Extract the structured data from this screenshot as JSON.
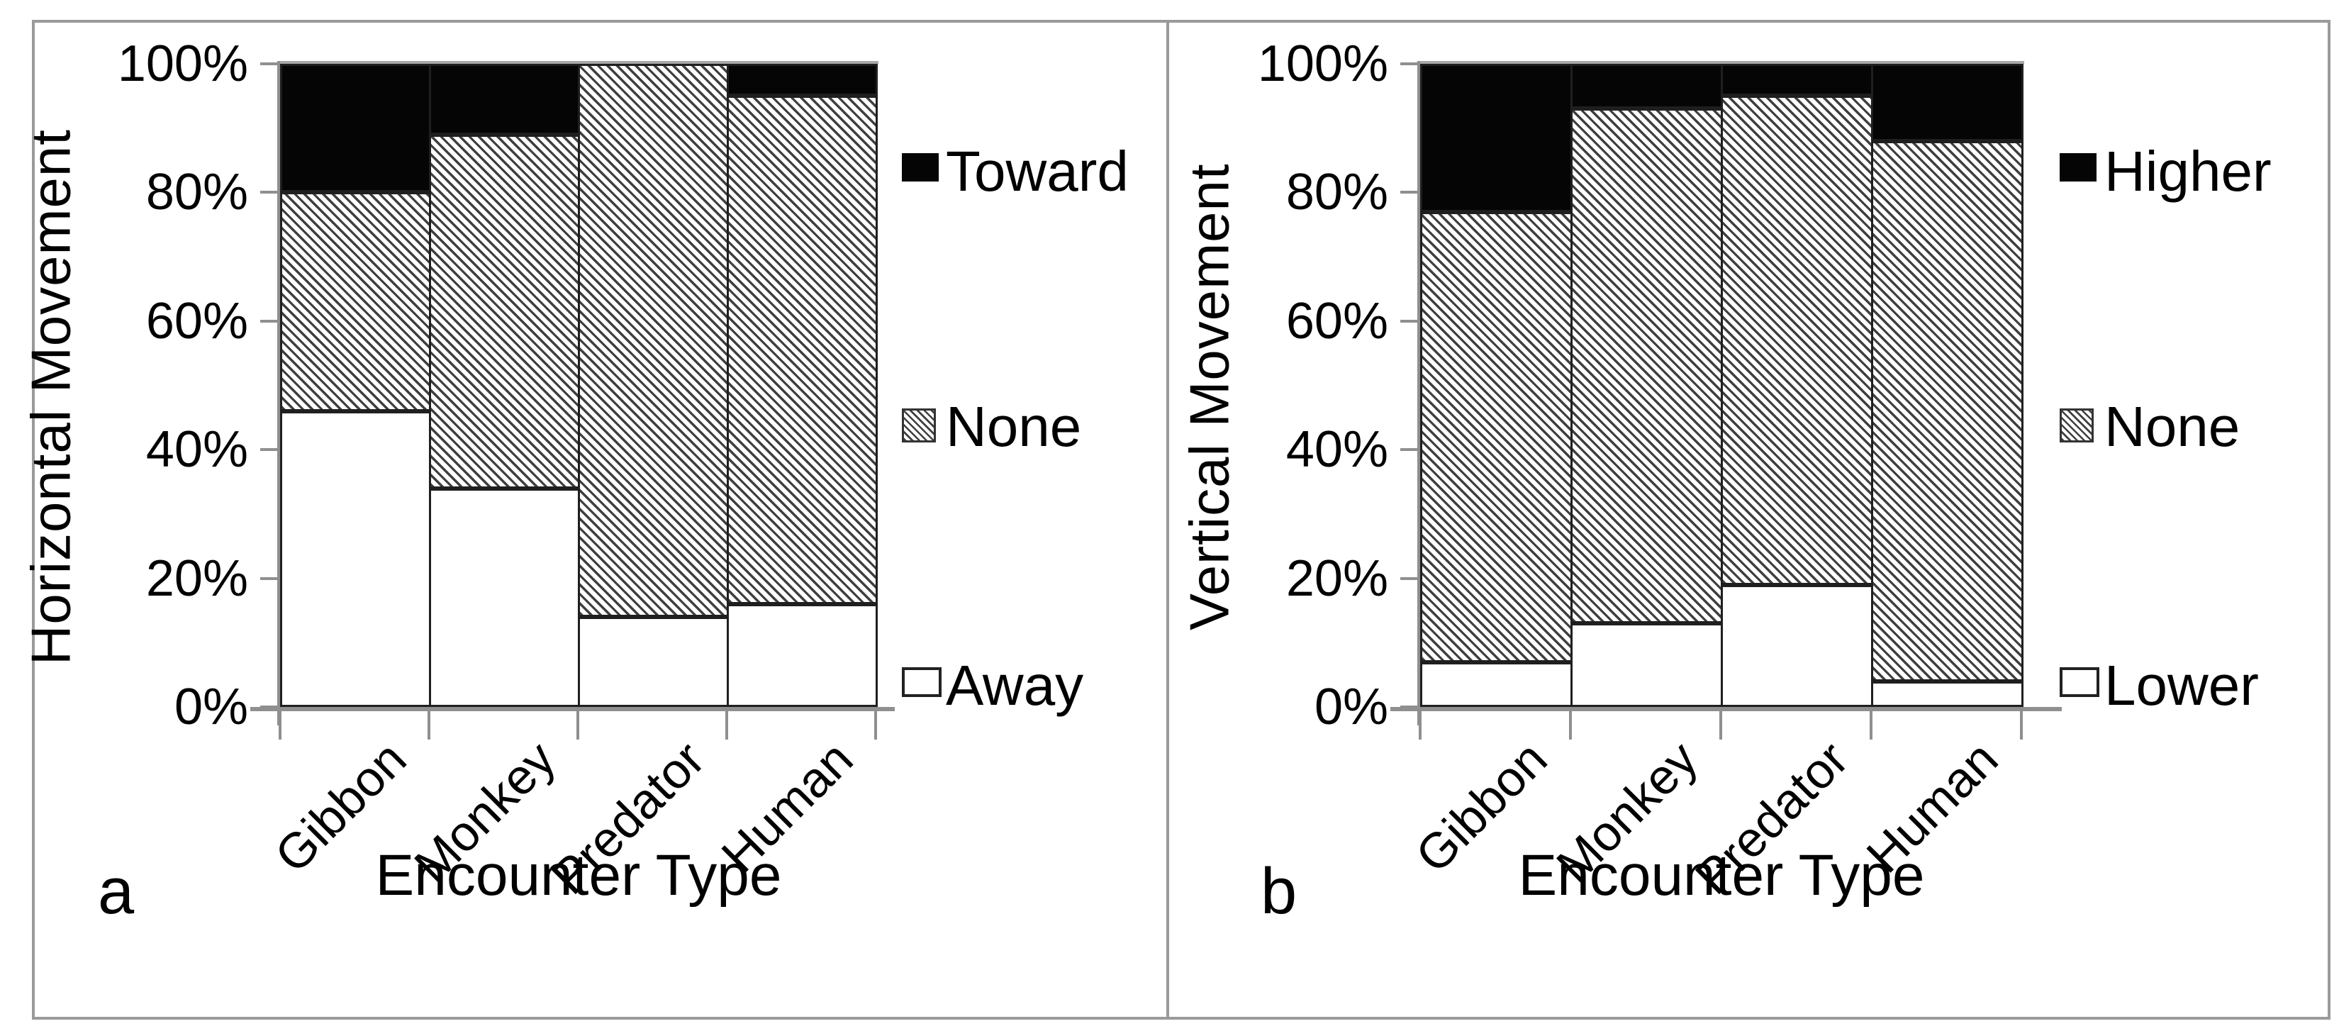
{
  "figure": {
    "background": "#ffffff",
    "frame_color": "#9a9a9a",
    "axis_color": "#8f8f8f",
    "bar_border_color": "#1f1f1f",
    "solid_fill": "#050505",
    "hatch_stripe_color": "#3f3f3f",
    "hatch_direction": "down-right-diagonal"
  },
  "chart_data": [
    {
      "type": "bar",
      "subtype": "stacked-100-percent",
      "panel_label": "a",
      "ylabel": "Horizontal Movement",
      "xlabel": "Encounter Type",
      "categories": [
        "Gibbon",
        "Monkey",
        "Predator",
        "Human"
      ],
      "yticks": [
        "100%",
        "80%",
        "60%",
        "40%",
        "20%",
        "0%"
      ],
      "ylim": [
        0,
        100
      ],
      "grid": false,
      "legend_position": "right",
      "series": [
        {
          "name": "Toward",
          "pattern": "solid",
          "values": [
            20,
            11,
            0,
            5
          ]
        },
        {
          "name": "None",
          "pattern": "hatch",
          "values": [
            34,
            55,
            86,
            79
          ]
        },
        {
          "name": "Away",
          "pattern": "open",
          "values": [
            46,
            34,
            14,
            16
          ]
        }
      ]
    },
    {
      "type": "bar",
      "subtype": "stacked-100-percent",
      "panel_label": "b",
      "ylabel": "Vertical Movement",
      "xlabel": "Encounter Type",
      "categories": [
        "Gibbon",
        "Monkey",
        "Predator",
        "Human"
      ],
      "yticks": [
        "100%",
        "80%",
        "60%",
        "40%",
        "20%",
        "0%"
      ],
      "ylim": [
        0,
        100
      ],
      "grid": false,
      "legend_position": "right",
      "series": [
        {
          "name": "Higher",
          "pattern": "solid",
          "values": [
            23,
            7,
            5,
            12
          ]
        },
        {
          "name": "None",
          "pattern": "hatch",
          "values": [
            70,
            80,
            76,
            84
          ]
        },
        {
          "name": "Lower",
          "pattern": "open",
          "values": [
            7,
            13,
            19,
            4
          ]
        }
      ]
    }
  ]
}
